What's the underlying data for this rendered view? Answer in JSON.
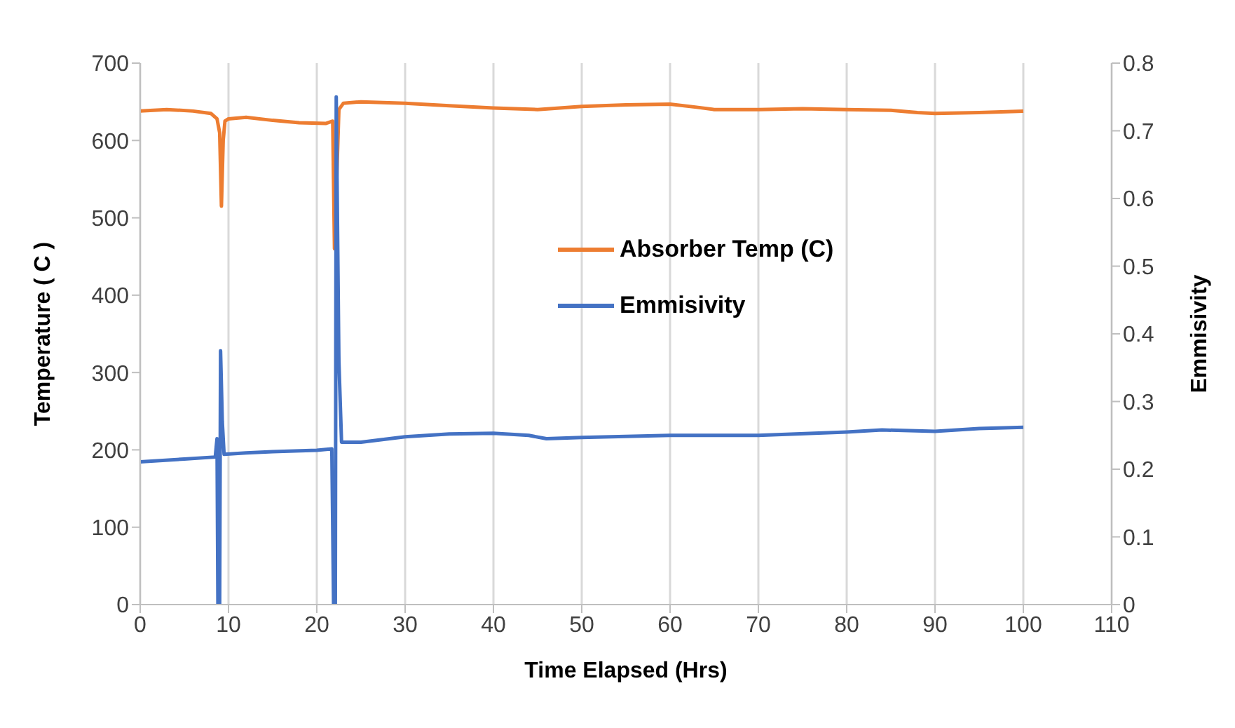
{
  "chart_data": {
    "type": "line",
    "xlabel": "Time Elapsed (Hrs)",
    "ylabel": "Temperature ( C )",
    "y2label": "Emmisivity",
    "xlim": [
      0,
      110
    ],
    "xticks": [
      0,
      10,
      20,
      30,
      40,
      50,
      60,
      70,
      80,
      90,
      100,
      110
    ],
    "ylim": [
      0,
      700
    ],
    "yticks": [
      0,
      100,
      200,
      300,
      400,
      500,
      600,
      700
    ],
    "y2lim": [
      0,
      0.8
    ],
    "y2ticks": [
      0,
      0.1,
      0.2,
      0.3,
      0.4,
      0.5,
      0.6,
      0.7,
      0.8
    ],
    "grid": "x",
    "legend": "right",
    "marker": "none",
    "line_style": "solid",
    "series": [
      {
        "name": "Absorber Temp (C)",
        "color": "#ed7d31",
        "x": [
          0,
          3,
          6,
          8,
          8.7,
          9,
          9.2,
          9.4,
          9.6,
          10,
          12,
          15,
          18,
          21,
          21.8,
          22,
          22.2,
          22.5,
          23,
          25,
          30,
          35,
          40,
          45,
          50,
          55,
          60,
          63,
          65,
          70,
          75,
          80,
          85,
          88,
          90,
          95,
          100
        ],
        "values": [
          638,
          640,
          638,
          635,
          628,
          610,
          515,
          600,
          625,
          628,
          630,
          626,
          623,
          622,
          625,
          460,
          530,
          640,
          648,
          650,
          648,
          645,
          642,
          640,
          644,
          646,
          647,
          643,
          640,
          640,
          641,
          640,
          639,
          636,
          635,
          636,
          638
        ]
      },
      {
        "name": "Emmisivity",
        "color": "#4472c4",
        "axis": "y2",
        "x": [
          0,
          5,
          8.5,
          8.7,
          8.8,
          9,
          9.1,
          9.3,
          9.5,
          12,
          15,
          20,
          21.7,
          21.9,
          22.1,
          22.2,
          22.5,
          22.8,
          25,
          30,
          35,
          40,
          44,
          46,
          50,
          60,
          70,
          80,
          84,
          90,
          95,
          100
        ],
        "values": [
          0.211,
          0.215,
          0.218,
          0.245,
          0,
          0,
          0.375,
          0.27,
          0.222,
          0.224,
          0.226,
          0.228,
          0.23,
          0,
          0,
          0.75,
          0.36,
          0.24,
          0.24,
          0.248,
          0.252,
          0.253,
          0.25,
          0.245,
          0.247,
          0.25,
          0.25,
          0.255,
          0.258,
          0.256,
          0.26,
          0.262
        ]
      }
    ]
  }
}
